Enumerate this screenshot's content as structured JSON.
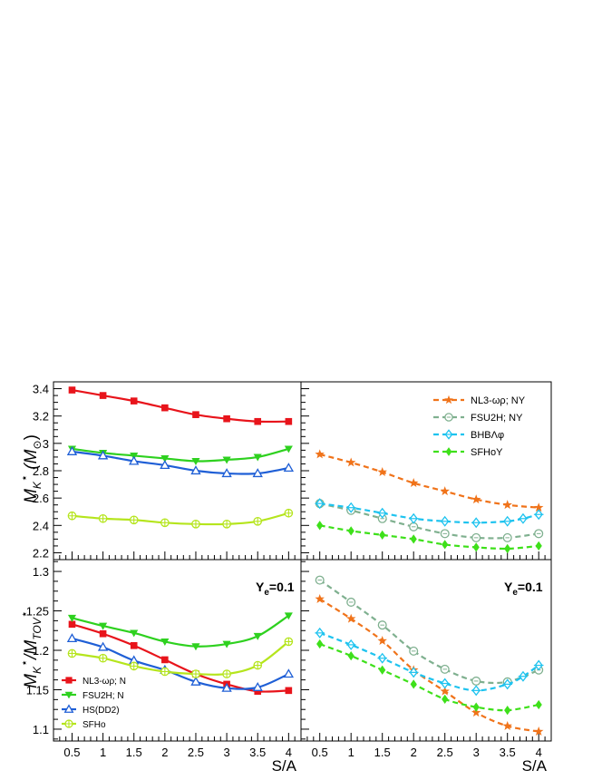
{
  "chart_data": [
    {
      "type": "line",
      "panel": "top-left",
      "ylabel": "M_K^⋆ (M_⊙)",
      "ylim": [
        2.15,
        3.45
      ],
      "xlim": [
        0.2,
        4.2
      ],
      "yticks": [
        2.2,
        2.4,
        2.6,
        2.8,
        3,
        3.2,
        3.4
      ],
      "ytick_labels": [
        "2.2",
        "2.4",
        "2.6",
        "2.8",
        "3",
        "3.2",
        "3.4"
      ],
      "x": [
        0.5,
        1,
        1.5,
        2,
        2.5,
        3,
        3.5,
        4
      ],
      "series": [
        {
          "name": "NL3-ωρ; N",
          "color": "#e8141b",
          "marker": "square",
          "dashed": false,
          "values": [
            3.39,
            3.35,
            3.31,
            3.26,
            3.21,
            3.18,
            3.16,
            3.16
          ]
        },
        {
          "name": "FSU2H; N",
          "color": "#2ed11f",
          "marker": "triangle-down",
          "dashed": false,
          "values": [
            2.96,
            2.93,
            2.91,
            2.89,
            2.87,
            2.88,
            2.9,
            2.96
          ]
        },
        {
          "name": "HS(DD2)",
          "color": "#1f5fd6",
          "marker": "triangle-up-open",
          "dashed": false,
          "values": [
            2.94,
            2.91,
            2.87,
            2.84,
            2.8,
            2.78,
            2.78,
            2.82
          ]
        },
        {
          "name": "SFHo",
          "color": "#b5e51d",
          "marker": "circle-cross",
          "dashed": false,
          "values": [
            2.47,
            2.45,
            2.44,
            2.42,
            2.41,
            2.41,
            2.43,
            2.49
          ]
        }
      ]
    },
    {
      "type": "line",
      "panel": "top-right",
      "ylim": [
        2.15,
        3.45
      ],
      "xlim": [
        0.2,
        4.2
      ],
      "x": [
        0.5,
        1,
        1.5,
        2,
        2.5,
        3,
        3.5,
        4
      ],
      "legend": {
        "placement": "top-right"
      },
      "series": [
        {
          "name": "NL3-ωρ; NY",
          "color": "#f0731a",
          "marker": "star",
          "dashed": true,
          "values": [
            2.92,
            2.86,
            2.79,
            2.71,
            2.65,
            2.59,
            2.55,
            2.53
          ]
        },
        {
          "name": "FSU2H; NY",
          "color": "#7fb08f",
          "marker": "circle-open",
          "dashed": true,
          "values": [
            2.56,
            2.51,
            2.45,
            2.39,
            2.34,
            2.31,
            2.31,
            2.34
          ]
        },
        {
          "name": "BHBΛφ",
          "color": "#1ec3ef",
          "marker": "cross-diamond",
          "dashed": true,
          "x": [
            0.5,
            1,
            1.5,
            2,
            2.5,
            3,
            3.5,
            3.75,
            4
          ],
          "values": [
            2.56,
            2.53,
            2.49,
            2.45,
            2.43,
            2.42,
            2.43,
            2.45,
            2.48
          ]
        },
        {
          "name": "SFHoY",
          "color": "#3ee01a",
          "marker": "diamond",
          "dashed": true,
          "values": [
            2.4,
            2.36,
            2.33,
            2.3,
            2.26,
            2.24,
            2.23,
            2.25
          ]
        }
      ]
    },
    {
      "type": "line",
      "panel": "bottom-left",
      "ylabel": "M_K^⋆/M_TOV^⋆",
      "xlabel": "S/A",
      "annotation": "Y_e=0.1",
      "ylim": [
        1.085,
        1.315
      ],
      "xlim": [
        0.2,
        4.2
      ],
      "yticks": [
        1.1,
        1.15,
        1.2,
        1.25,
        1.3
      ],
      "ytick_labels": [
        "1.1",
        "1.15",
        "1.2",
        "1.25",
        "1.3"
      ],
      "xticks": [
        0.5,
        1,
        1.5,
        2,
        2.5,
        3,
        3.5,
        4
      ],
      "xtick_labels": [
        "0.5",
        "1",
        "1.5",
        "2",
        "2.5",
        "3",
        "3.5",
        "4"
      ],
      "x": [
        0.5,
        1,
        1.5,
        2,
        2.5,
        3,
        3.5,
        4
      ],
      "legend": {
        "placement": "bottom-left"
      },
      "series": [
        {
          "name": "NL3-ωρ; N",
          "color": "#e8141b",
          "marker": "square",
          "dashed": false,
          "values": [
            1.233,
            1.221,
            1.206,
            1.188,
            1.17,
            1.157,
            1.148,
            1.149
          ]
        },
        {
          "name": "FSU2H; N",
          "color": "#2ed11f",
          "marker": "triangle-down",
          "dashed": false,
          "values": [
            1.241,
            1.231,
            1.222,
            1.211,
            1.205,
            1.208,
            1.218,
            1.244
          ]
        },
        {
          "name": "HS(DD2)",
          "color": "#1f5fd6",
          "marker": "triangle-up-open",
          "dashed": false,
          "values": [
            1.215,
            1.204,
            1.187,
            1.175,
            1.16,
            1.152,
            1.153,
            1.17
          ]
        },
        {
          "name": "SFHo",
          "color": "#b5e51d",
          "marker": "circle-cross",
          "dashed": false,
          "values": [
            1.196,
            1.19,
            1.18,
            1.173,
            1.17,
            1.17,
            1.181,
            1.211
          ]
        }
      ]
    },
    {
      "type": "line",
      "panel": "bottom-right",
      "xlabel": "S/A",
      "annotation": "Y_e=0.1",
      "ylim": [
        1.085,
        1.315
      ],
      "xlim": [
        0.2,
        4.2
      ],
      "xticks": [
        0.5,
        1,
        1.5,
        2,
        2.5,
        3,
        3.5,
        4
      ],
      "xtick_labels": [
        "0.5",
        "1",
        "1.5",
        "2",
        "2.5",
        "3",
        "3.5",
        "4"
      ],
      "x": [
        0.5,
        1,
        1.5,
        2,
        2.5,
        3,
        3.5,
        4
      ],
      "series": [
        {
          "name": "NL3-ωρ; NY",
          "color": "#f0731a",
          "marker": "star",
          "dashed": true,
          "values": [
            1.265,
            1.24,
            1.212,
            1.175,
            1.148,
            1.121,
            1.104,
            1.097
          ]
        },
        {
          "name": "FSU2H; NY",
          "color": "#7fb08f",
          "marker": "circle-open",
          "dashed": true,
          "values": [
            1.289,
            1.261,
            1.232,
            1.199,
            1.176,
            1.161,
            1.16,
            1.175
          ]
        },
        {
          "name": "BHBΛφ",
          "color": "#1ec3ef",
          "marker": "cross-diamond",
          "dashed": true,
          "x": [
            0.5,
            1,
            1.5,
            2,
            2.5,
            3,
            3.5,
            3.75,
            4
          ],
          "values": [
            1.222,
            1.207,
            1.19,
            1.172,
            1.158,
            1.149,
            1.157,
            1.167,
            1.181
          ]
        },
        {
          "name": "SFHoY",
          "color": "#3ee01a",
          "marker": "diamond",
          "dashed": true,
          "values": [
            1.208,
            1.193,
            1.175,
            1.157,
            1.138,
            1.128,
            1.124,
            1.131
          ]
        }
      ]
    }
  ]
}
